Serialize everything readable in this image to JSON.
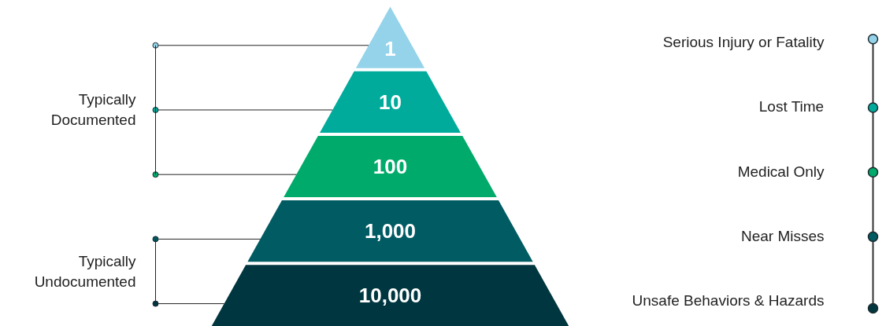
{
  "chart_data": {
    "type": "other",
    "categories": [
      "Serious Injury or Fatality",
      "Lost Time",
      "Medical Only",
      "Near Misses",
      "Unsafe Behaviors & Hazards"
    ],
    "values": [
      1,
      10,
      100,
      1000,
      10000
    ],
    "value_labels": [
      "1",
      "10",
      "100",
      "1,000",
      "10,000"
    ],
    "colors": [
      "#94d3ea",
      "#00ab9b",
      "#00aa6a",
      "#005b62",
      "#00363f"
    ],
    "annotations": [
      "Typically Documented",
      "Typically Undocumented"
    ]
  }
}
